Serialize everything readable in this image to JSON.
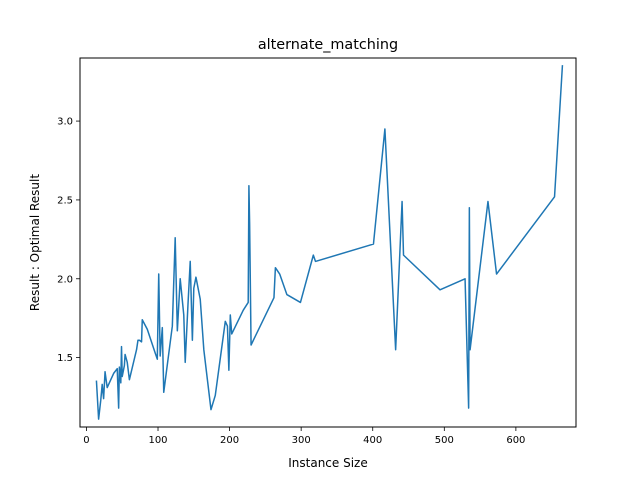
{
  "chart_data": {
    "type": "line",
    "title": "alternate_matching",
    "xlabel": "Instance Size",
    "ylabel": "Result : Optimal Result",
    "xlim": [
      -9,
      684
    ],
    "ylim": [
      1.06,
      3.4
    ],
    "x_ticks": [
      {
        "value": 0,
        "label": "0"
      },
      {
        "value": 100,
        "label": "100"
      },
      {
        "value": 200,
        "label": "200"
      },
      {
        "value": 300,
        "label": "300"
      },
      {
        "value": 400,
        "label": "400"
      },
      {
        "value": 500,
        "label": "500"
      },
      {
        "value": 600,
        "label": "600"
      }
    ],
    "y_ticks": [
      {
        "value": 1.5,
        "label": "1.5"
      },
      {
        "value": 2.0,
        "label": "2.0"
      },
      {
        "value": 2.5,
        "label": "2.5"
      },
      {
        "value": 3.0,
        "label": "3.0"
      }
    ],
    "grid": false,
    "legend": "none",
    "series": [
      {
        "color": "#1f77b4",
        "points": [
          [
            14,
            1.35
          ],
          [
            17,
            1.11
          ],
          [
            20,
            1.23
          ],
          [
            22,
            1.33
          ],
          [
            24,
            1.24
          ],
          [
            26,
            1.41
          ],
          [
            29,
            1.31
          ],
          [
            38,
            1.4
          ],
          [
            43,
            1.43
          ],
          [
            45,
            1.18
          ],
          [
            46,
            1.44
          ],
          [
            48,
            1.34
          ],
          [
            49,
            1.57
          ],
          [
            50,
            1.38
          ],
          [
            53,
            1.45
          ],
          [
            54,
            1.52
          ],
          [
            57,
            1.47
          ],
          [
            60,
            1.36
          ],
          [
            70,
            1.55
          ],
          [
            72,
            1.61
          ],
          [
            74,
            1.61
          ],
          [
            77,
            1.6
          ],
          [
            78,
            1.74
          ],
          [
            85,
            1.68
          ],
          [
            96,
            1.53
          ],
          [
            99,
            1.49
          ],
          [
            101,
            2.03
          ],
          [
            103,
            1.51
          ],
          [
            106,
            1.69
          ],
          [
            108,
            1.28
          ],
          [
            120,
            1.7
          ],
          [
            124,
            2.26
          ],
          [
            127,
            1.67
          ],
          [
            131,
            2.0
          ],
          [
            136,
            1.77
          ],
          [
            138,
            1.47
          ],
          [
            142,
            1.85
          ],
          [
            145,
            2.11
          ],
          [
            148,
            1.61
          ],
          [
            150,
            1.94
          ],
          [
            153,
            2.01
          ],
          [
            159,
            1.87
          ],
          [
            164,
            1.55
          ],
          [
            174,
            1.17
          ],
          [
            180,
            1.26
          ],
          [
            194,
            1.73
          ],
          [
            197,
            1.7
          ],
          [
            199,
            1.42
          ],
          [
            201,
            1.77
          ],
          [
            203,
            1.65
          ],
          [
            219,
            1.8
          ],
          [
            226,
            1.85
          ],
          [
            227,
            2.59
          ],
          [
            228,
            2.35
          ],
          [
            230,
            1.58
          ],
          [
            262,
            1.88
          ],
          [
            264,
            2.07
          ],
          [
            270,
            2.03
          ],
          [
            280,
            1.9
          ],
          [
            299,
            1.85
          ],
          [
            317,
            2.15
          ],
          [
            320,
            2.11
          ],
          [
            401,
            2.22
          ],
          [
            417,
            2.95
          ],
          [
            432,
            1.55
          ],
          [
            441,
            2.49
          ],
          [
            443,
            2.15
          ],
          [
            494,
            1.93
          ],
          [
            529,
            2.0
          ],
          [
            534,
            1.18
          ],
          [
            535,
            2.45
          ],
          [
            536,
            1.55
          ],
          [
            561,
            2.49
          ],
          [
            573,
            2.03
          ],
          [
            654,
            2.52
          ],
          [
            665,
            3.35
          ]
        ]
      }
    ]
  }
}
